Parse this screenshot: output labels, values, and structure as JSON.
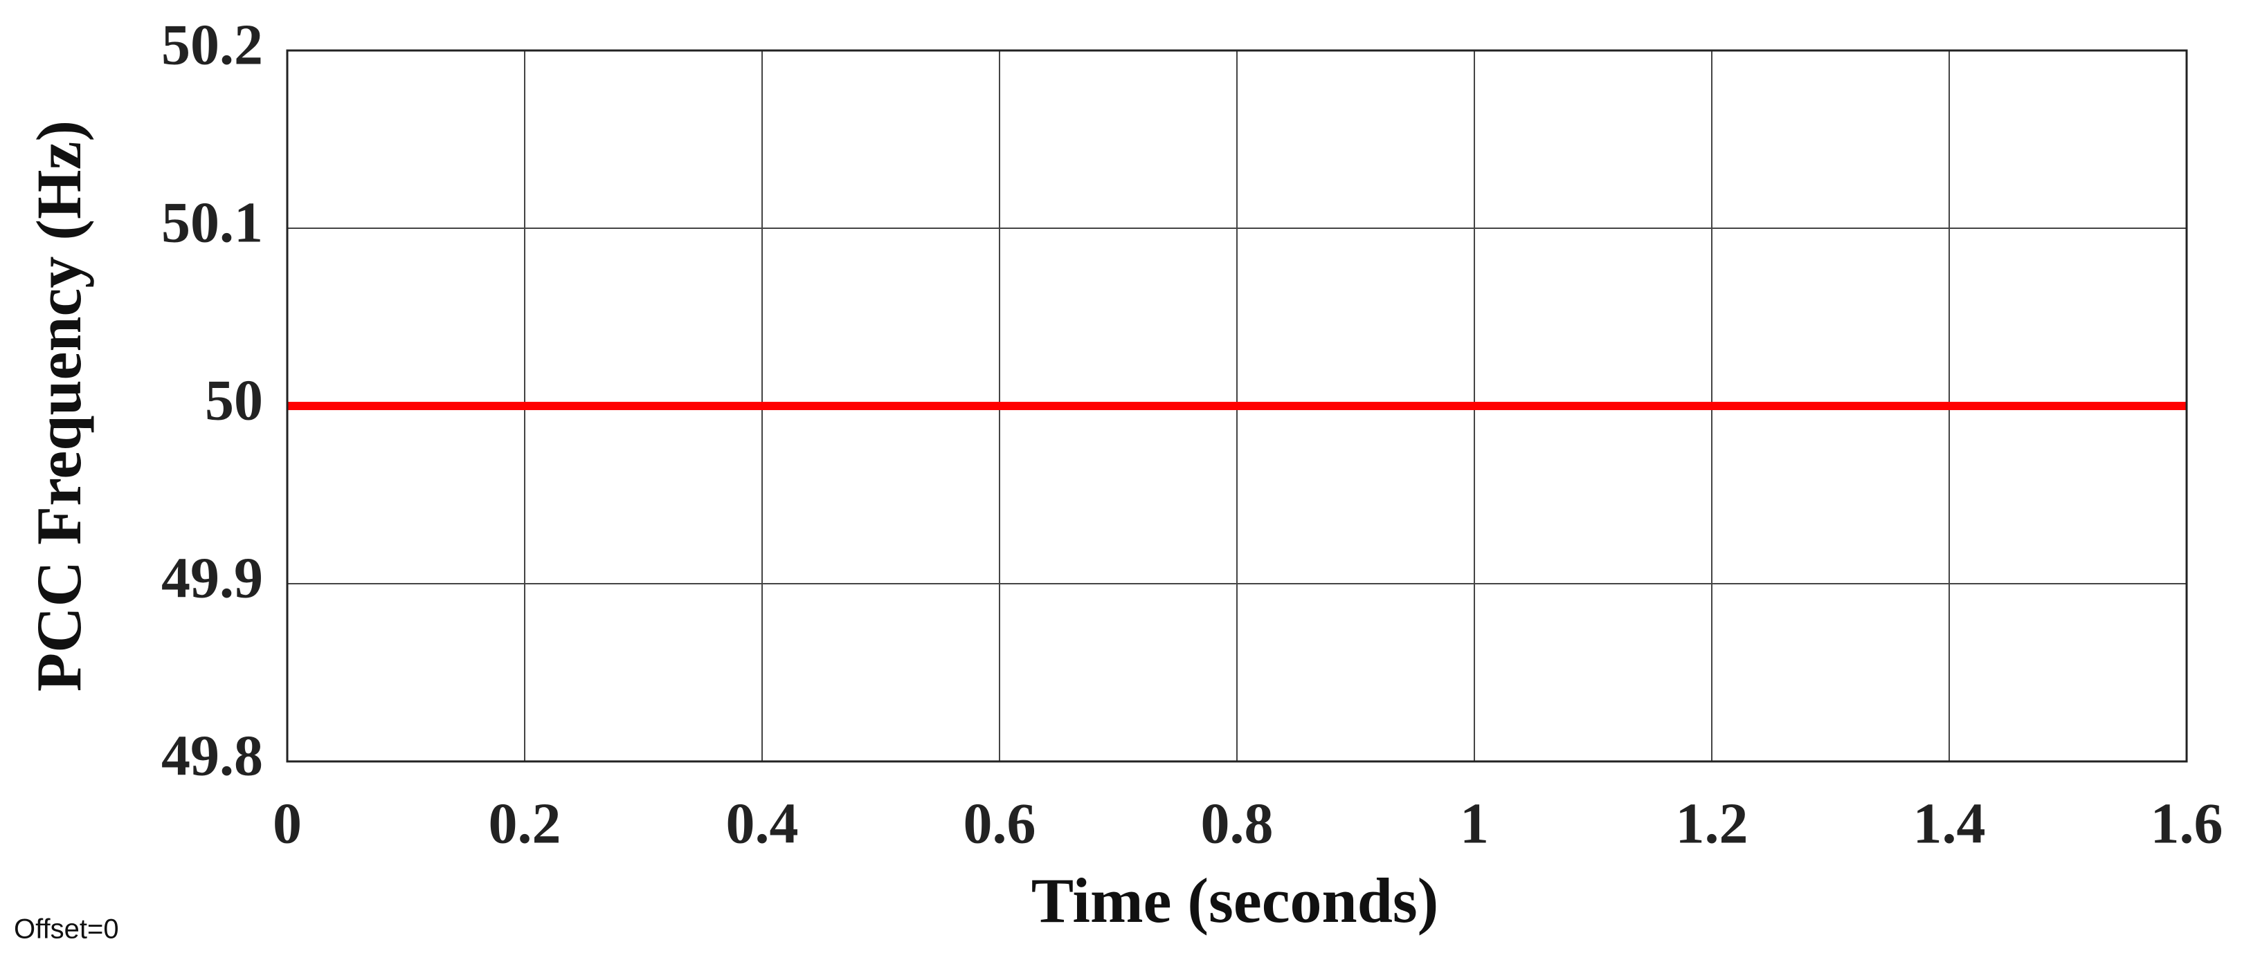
{
  "chart_data": {
    "type": "line",
    "x_label": "Time (seconds)",
    "y_label": "PCC Frequency (Hz)",
    "annotation": "Offset=0",
    "x": [
      0,
      1.6
    ],
    "series": [
      {
        "name": "PCC Frequency",
        "color": "#ff0000",
        "values": [
          50,
          50
        ]
      }
    ],
    "xlim": [
      0,
      1.6
    ],
    "xticks": [
      0,
      0.2,
      0.4,
      0.6,
      0.8,
      1,
      1.2,
      1.4,
      1.6
    ],
    "ylim": [
      49.8,
      50.2
    ],
    "yticks": [
      49.8,
      49.9,
      50,
      50.1,
      50.2
    ],
    "grid": true
  }
}
